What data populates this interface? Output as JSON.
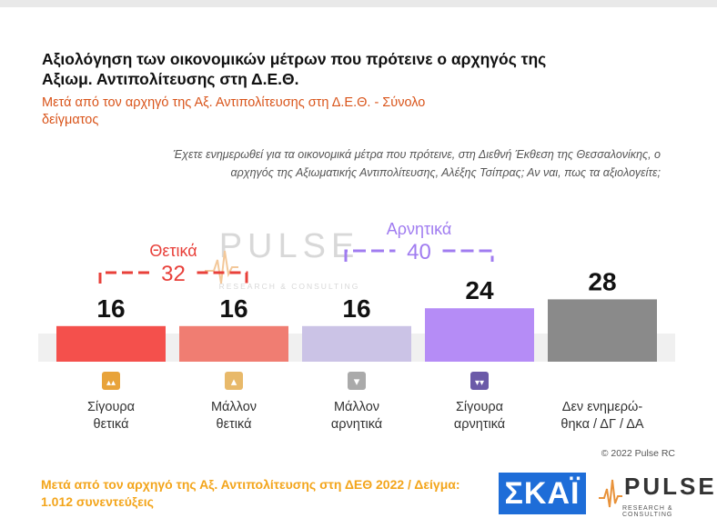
{
  "header": {
    "title": "Αξιολόγηση των οικονομικών μέτρων που πρότεινε ο αρχηγός της Αξιωμ. Αντιπολίτευσης στη Δ.Ε.Θ.",
    "subtitle": "Μετά από τον αρχηγό της Αξ. Αντιπολίτευσης στη Δ.Ε.Θ. - Σύνολο δείγματος",
    "question": "Έχετε ενημερωθεί για τα οικονομικά μέτρα που πρότεινε, στη Διεθνή Έκθεση της Θεσσαλονίκης, ο αρχηγός της Αξιωματικής Αντιπολίτευσης, Αλέξης Τσίπρας; Αν ναι, πως τα αξιολογείτε;"
  },
  "chart_data": {
    "type": "bar",
    "categories": [
      "Σίγουρα θετικά",
      "Μάλλον θετικά",
      "Μάλλον αρνητικά",
      "Σίγουρα αρνητικά",
      "Δεν ενημερώ- θηκα / ΔΓ / ΔΑ"
    ],
    "category_lines": [
      [
        "Σίγουρα",
        "θετικά"
      ],
      [
        "Μάλλον",
        "θετικά"
      ],
      [
        "Μάλλον",
        "αρνητικά"
      ],
      [
        "Σίγουρα",
        "αρνητικά"
      ],
      [
        "Δεν ενημερώ-",
        "θηκα / ΔΓ / ΔΑ"
      ]
    ],
    "values": [
      16,
      16,
      16,
      24,
      28
    ],
    "colors": [
      "#f4504c",
      "#f07d72",
      "#cbc3e6",
      "#b58cf6",
      "#8a8a8a"
    ],
    "icons": [
      "double-thumbs-up-icon",
      "thumbs-up-icon",
      "thumbs-down-icon",
      "double-thumbs-down-icon",
      null
    ],
    "icon_colors": [
      "#e8a33a",
      "#e8b96a",
      "#aaaaaa",
      "#6b5aa8",
      null
    ],
    "groups": [
      {
        "label": "Θετικά",
        "total": "32",
        "color": "#e8403a",
        "from": 0,
        "to": 1
      },
      {
        "label": "Αρνητικά",
        "total": "40",
        "color": "#a07cf0",
        "from": 2,
        "to": 3
      }
    ]
  },
  "credit": "© 2022 Pulse RC",
  "footer": "Μετά από τον αρχηγό της Αξ. Αντιπολίτευσης στη ΔΕΘ 2022 / Δείγμα: 1.012 συνεντεύξεις",
  "logos": {
    "skai": "ΣΚΑΪ",
    "pulse": "PULSE",
    "pulse_sub": "RESEARCH & CONSULTING",
    "watermark": "PULSE",
    "watermark_sub": "RESEARCH & CONSULTING"
  }
}
